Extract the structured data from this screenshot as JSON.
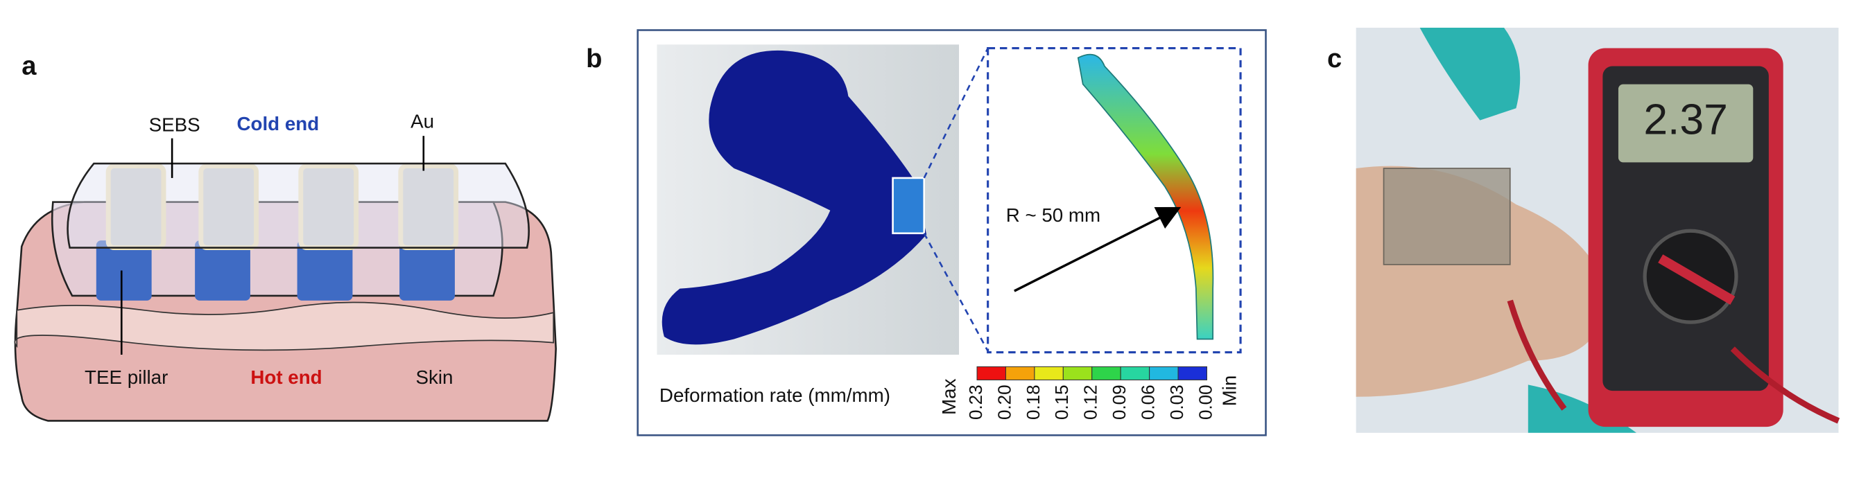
{
  "panels": {
    "a": {
      "label": "a",
      "sebs": "SEBS",
      "cold_end": "Cold end",
      "au": "Au",
      "tee_pillar": "TEE pillar",
      "hot_end": "Hot end",
      "skin": "Skin"
    },
    "b": {
      "label": "b",
      "radius": "R ~ 50 mm",
      "colorbar_title": "Deformation rate (mm/mm)",
      "max": "Max",
      "min": "Min",
      "ticks": [
        "0.23",
        "0.20",
        "0.18",
        "0.15",
        "0.12",
        "0.09",
        "0.06",
        "0.03",
        "0.00"
      ],
      "colors": [
        "#ee1111",
        "#f5a20a",
        "#e8e81a",
        "#9be21c",
        "#2ed44a",
        "#27d6a0",
        "#21b8e0",
        "#1a2fd8"
      ]
    },
    "c": {
      "label": "c",
      "display": "2.37"
    }
  }
}
